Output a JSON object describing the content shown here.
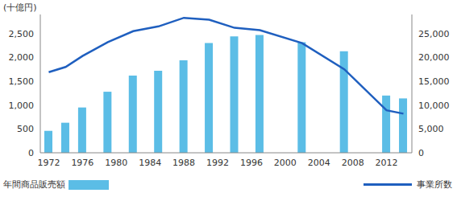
{
  "chart_data": {
    "type": "bar_line",
    "ylabel": "(十億円)",
    "x": [
      1972,
      1974,
      1976,
      1979,
      1982,
      1985,
      1988,
      1991,
      1994,
      1997,
      2002,
      2007,
      2012,
      2014
    ],
    "xlim": [
      1971,
      2015
    ],
    "xticks": [
      1972,
      1976,
      1980,
      1984,
      1988,
      1992,
      1996,
      2000,
      2004,
      2008,
      2012
    ],
    "ylim": [
      0,
      2900
    ],
    "yticks": [
      0,
      500,
      {
        "value": 1000,
        "label": "1,000"
      },
      {
        "value": 1500,
        "label": "1,500"
      },
      {
        "value": 2000,
        "label": "2,000"
      },
      {
        "value": 2500,
        "label": "2,500"
      }
    ],
    "y2lim": [
      0,
      29000
    ],
    "y2ticks": [
      0,
      {
        "value": 5000,
        "label": "5,000"
      },
      {
        "value": 10000,
        "label": "10,000"
      },
      {
        "value": 15000,
        "label": "15,000"
      },
      {
        "value": 20000,
        "label": "20,000"
      },
      {
        "value": 25000,
        "label": "25,000"
      }
    ],
    "grid": false,
    "series": [
      {
        "name": "年間商品販売額",
        "type": "bar",
        "color": "#5bbde6",
        "values": [
          460,
          630,
          950,
          1280,
          1620,
          1720,
          1940,
          2300,
          2440,
          2470,
          2320,
          2130,
          1200,
          1140
        ]
      },
      {
        "name": "事業所数",
        "type": "line",
        "axis": "y2",
        "color": "#1f5fbf",
        "values": [
          16900,
          18000,
          20300,
          23200,
          25500,
          26500,
          28300,
          27900,
          26200,
          25700,
          23000,
          17500,
          8900,
          8200
        ]
      }
    ]
  }
}
